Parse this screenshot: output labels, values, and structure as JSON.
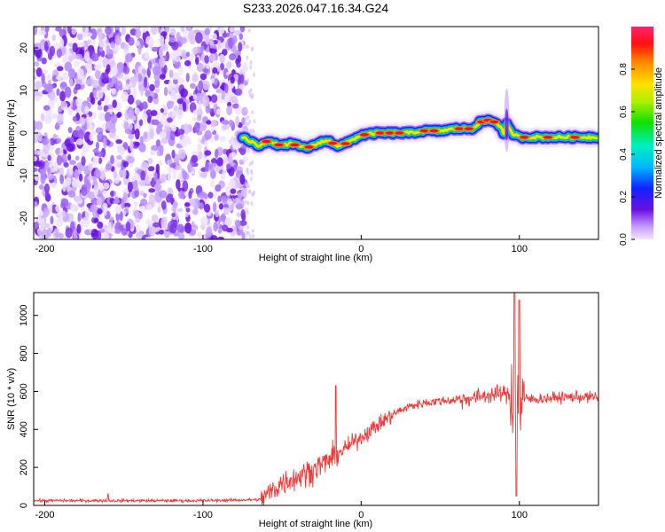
{
  "figure": {
    "title": "S233.2026.047.16.34.G24"
  },
  "colors": {
    "signal_line": "#f03a3a",
    "noise_purple": "#8a4de0",
    "noise_purple_dark": "#6a10e0",
    "axis": "#000000"
  },
  "chart_data": [
    {
      "type": "heatmap",
      "name": "spectrogram",
      "title": "S233.2026.047.16.34.G24",
      "xlabel": "Height of straight line (km)",
      "ylabel": "Frequency (Hz)",
      "xlim": [
        -207,
        150
      ],
      "ylim": [
        -25,
        25
      ],
      "xticks": [
        -200,
        -100,
        0,
        100
      ],
      "yticks": [
        -20,
        -10,
        0,
        10,
        20
      ],
      "noise_region_x": [
        -207,
        -73
      ],
      "ridge": {
        "x": [
          -75,
          -70,
          -65,
          -60,
          -55,
          -50,
          -45,
          -40,
          -35,
          -30,
          -25,
          -20,
          -15,
          -10,
          -5,
          0,
          10,
          20,
          30,
          40,
          50,
          60,
          70,
          75,
          80,
          85,
          88,
          90,
          92,
          95,
          100,
          110,
          120,
          130,
          140,
          150
        ],
        "freq": [
          -1,
          -2,
          -3,
          -2,
          -2.5,
          -3,
          -2.5,
          -3,
          -3.5,
          -3,
          -2,
          -2,
          -3,
          -2.5,
          -1.5,
          -0.5,
          0,
          0,
          0,
          0.5,
          0.5,
          1,
          1,
          2.5,
          3,
          2.5,
          1.5,
          0,
          2,
          0,
          -1,
          -1,
          -1,
          -1,
          -1,
          -1
        ]
      },
      "colorbar": {
        "label": "Normalized spectral amplitude",
        "range": [
          0,
          1
        ],
        "ticks": [
          "0.0",
          "0.2",
          "0.4",
          "0.6",
          "0.8"
        ]
      }
    },
    {
      "type": "line",
      "name": "snr",
      "xlabel": "Height of straight line (km)",
      "ylabel": "SNR (10 * v/v)",
      "xlim": [
        -207,
        150
      ],
      "ylim": [
        0,
        1120
      ],
      "xticks": [
        -200,
        -100,
        0,
        100
      ],
      "yticks": [
        0,
        200,
        400,
        600,
        800,
        1000
      ],
      "trend": {
        "x": [
          -207,
          -100,
          -63,
          -50,
          -40,
          -30,
          -20,
          -10,
          0,
          10,
          20,
          30,
          40,
          50,
          60,
          70,
          80,
          90,
          100,
          110,
          120,
          130,
          140,
          150
        ],
        "y": [
          25,
          25,
          30,
          120,
          150,
          190,
          240,
          300,
          360,
          420,
          480,
          520,
          540,
          550,
          555,
          565,
          580,
          590,
          560,
          560,
          565,
          570,
          570,
          570
        ]
      },
      "features": {
        "x": [
          -160,
          -71,
          -16,
          97,
          98,
          100
        ],
        "y": [
          60,
          20,
          630,
          1120,
          50,
          1080
        ]
      }
    }
  ]
}
